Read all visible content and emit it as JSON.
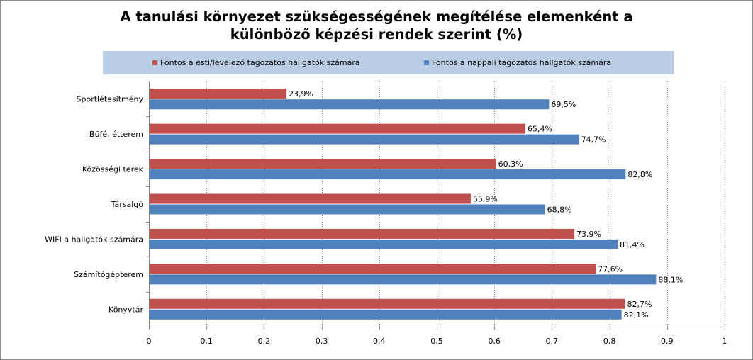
{
  "chart_data": {
    "type": "bar",
    "orientation": "horizontal",
    "title": "A tanulási környezet szükségességének megítélése elemenként a különböző képzési rendek szerint (%)",
    "title_lines": [
      "A tanulási környezet szükségességének megítélése elemenként a",
      "különböző képzési rendek szerint (%)"
    ],
    "categories": [
      "Sportlétesítmény",
      "Büfé, étterem",
      "Közösségi terek",
      "Társalgó",
      "WIFI a hallgatók számára",
      "Számítógépterem",
      "Könyvtár"
    ],
    "series": [
      {
        "name": "Fontos a esti/levelező tagozatos hallgatók számára",
        "color": "#c0504d",
        "values": [
          0.239,
          0.654,
          0.603,
          0.559,
          0.739,
          0.776,
          0.827
        ],
        "labels": [
          "23,9%",
          "65,4%",
          "60,3%",
          "55,9%",
          "73,9%",
          "77,6%",
          "82,7%"
        ]
      },
      {
        "name": "Fontos a nappali tagozatos hallgatók számára",
        "color": "#4f81bd",
        "values": [
          0.695,
          0.747,
          0.828,
          0.688,
          0.814,
          0.881,
          0.821
        ],
        "labels": [
          "69,5%",
          "74,7%",
          "82,8%",
          "68,8%",
          "81,4%",
          "88,1%",
          "82,1%"
        ]
      }
    ],
    "xlim": [
      0,
      1
    ],
    "x_ticks": [
      0,
      0.1,
      0.2,
      0.3,
      0.4,
      0.5,
      0.6,
      0.7,
      0.8,
      0.9,
      1
    ],
    "x_tick_labels": [
      "0",
      "0,1",
      "0,2",
      "0,3",
      "0,4",
      "0,5",
      "0,6",
      "0,7",
      "0,8",
      "0,9",
      "1"
    ],
    "grid": "vertical dotted",
    "legend_position": "top",
    "legend_background": "#b9cde5"
  }
}
